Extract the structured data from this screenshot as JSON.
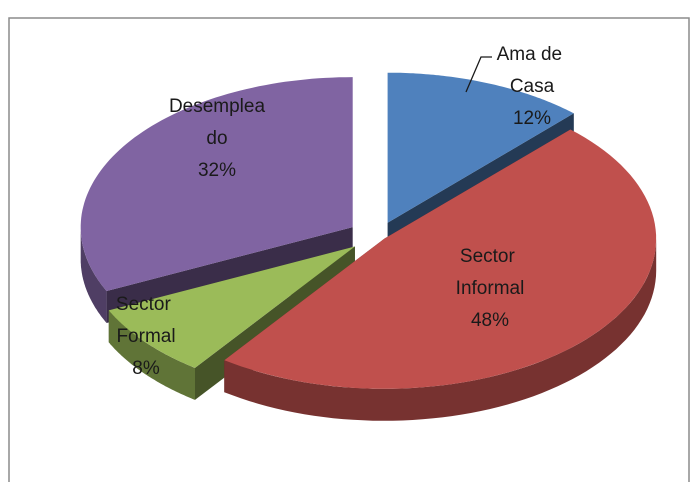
{
  "chart_data": {
    "type": "pie3d",
    "categories": [
      "Ama de Casa",
      "Sector Informal",
      "Sector Formal",
      "Desempleado"
    ],
    "values": [
      12,
      48,
      8,
      32
    ],
    "value_labels": [
      "12%",
      "48%",
      "8%",
      "32%"
    ],
    "colors": [
      "#4f81bd",
      "#c0504d",
      "#9bbb59",
      "#8064a2"
    ]
  }
}
